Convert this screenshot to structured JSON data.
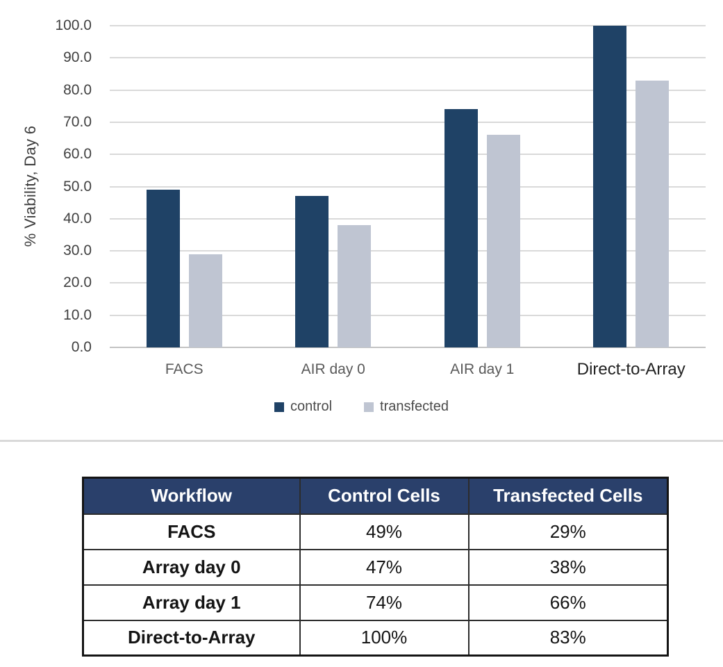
{
  "chart_data": {
    "type": "bar",
    "title": "",
    "xlabel": "",
    "ylabel": "% Viability, Day 6",
    "categories": [
      "FACS",
      "AIR day 0",
      "AIR day 1",
      "Direct-to-Array"
    ],
    "series": [
      {
        "name": "control",
        "color": "#1f4266",
        "values": [
          49,
          47,
          74,
          100
        ]
      },
      {
        "name": "transfected",
        "color": "#bfc5d2",
        "values": [
          29,
          38,
          66,
          83
        ]
      }
    ],
    "ylim": [
      0,
      100
    ],
    "ytick_step": 10,
    "ytick_decimals": 1,
    "grid": true,
    "legend_position": "bottom"
  },
  "table": {
    "headers": [
      "Workflow",
      "Control Cells",
      "Transfected Cells"
    ],
    "rows": [
      [
        "FACS",
        "49%",
        "29%"
      ],
      [
        "Array day 0",
        "47%",
        "38%"
      ],
      [
        "Array day 1",
        "74%",
        "66%"
      ],
      [
        "Direct-to-Array",
        "100%",
        "83%"
      ]
    ]
  },
  "colors": {
    "control_bar": "#1f4266",
    "transfected_bar": "#bfc5d2",
    "gridline": "#d9d9d9",
    "table_header_bg": "#2a406b",
    "table_header_text": "#ffffff"
  }
}
